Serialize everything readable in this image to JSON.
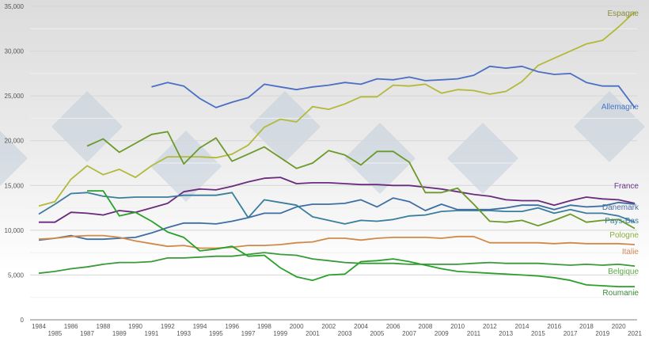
{
  "chart_data": {
    "type": "line",
    "title": "",
    "xlabel": "",
    "ylabel": "",
    "ylim": [
      0,
      35000
    ],
    "yticks": [
      "0",
      "5,000",
      "10,000",
      "15,000",
      "20,000",
      "25,000",
      "30,000",
      "35,000"
    ],
    "ytick_values": [
      0,
      5000,
      10000,
      15000,
      20000,
      25000,
      30000,
      35000
    ],
    "grid": true,
    "legend": "inline labels at line ends (right)",
    "x": [
      1984,
      1985,
      1986,
      1987,
      1988,
      1989,
      1990,
      1991,
      1992,
      1993,
      1994,
      1995,
      1996,
      1997,
      1998,
      1999,
      2000,
      2001,
      2002,
      2003,
      2004,
      2005,
      2006,
      2007,
      2008,
      2009,
      2010,
      2011,
      2012,
      2013,
      2014,
      2015,
      2016,
      2017,
      2018,
      2019,
      2020,
      2021
    ],
    "series": [
      {
        "name": "Espagne",
        "color": "#b3b93a",
        "label_color": "#8a8a3a",
        "values": [
          12700,
          13200,
          15700,
          17200,
          16200,
          16800,
          15900,
          17200,
          18200,
          18200,
          18200,
          18100,
          18500,
          19500,
          21500,
          22400,
          22100,
          23800,
          23500,
          24100,
          24900,
          24900,
          26200,
          26100,
          26300,
          25300,
          25700,
          25600,
          25200,
          25500,
          26600,
          28400,
          29200,
          30000,
          30800,
          31200,
          32700,
          34400
        ]
      },
      {
        "name": "Allemagne",
        "color": "#4a6fc4",
        "label_color": "#4a78c4",
        "values": [
          null,
          null,
          null,
          null,
          null,
          null,
          null,
          26000,
          26500,
          26100,
          24700,
          23700,
          24300,
          24800,
          26300,
          26000,
          25700,
          26000,
          26200,
          26500,
          26300,
          26900,
          26800,
          27100,
          26700,
          26800,
          26900,
          27300,
          28300,
          28100,
          28300,
          27700,
          27400,
          27500,
          26500,
          26100,
          26100,
          23700
        ]
      },
      {
        "name": "France",
        "color": "#6b2a7d",
        "label_color": "#6b3a8d",
        "values": [
          10900,
          10900,
          12000,
          11900,
          11700,
          12200,
          12000,
          12500,
          13000,
          14300,
          14600,
          14500,
          14900,
          15400,
          15800,
          15900,
          15200,
          15300,
          15300,
          15200,
          15100,
          15100,
          15000,
          15000,
          14800,
          14600,
          14300,
          14000,
          13800,
          13400,
          13300,
          13300,
          12800,
          13300,
          13700,
          13500,
          13400,
          13000
        ]
      },
      {
        "name": "Danemark",
        "color": "#3d6ea3",
        "label_color": "#4a6fa8",
        "values": [
          8900,
          9100,
          9400,
          9000,
          9000,
          9100,
          9200,
          9700,
          10300,
          10800,
          10800,
          10700,
          11000,
          11400,
          11900,
          11900,
          12600,
          12900,
          12900,
          13000,
          13400,
          12600,
          13600,
          13200,
          12200,
          12900,
          12300,
          12300,
          12300,
          12500,
          12800,
          12800,
          12300,
          12800,
          12600,
          12700,
          13100,
          12900
        ]
      },
      {
        "name": "Pays-Bas",
        "color": "#3a7d9c",
        "label_color": "#3a7d9c",
        "values": [
          11800,
          12900,
          14100,
          14200,
          13800,
          13600,
          13700,
          13700,
          13700,
          13900,
          13900,
          13900,
          14200,
          11400,
          13400,
          13100,
          12800,
          11500,
          11100,
          10700,
          11100,
          11000,
          11200,
          11600,
          11700,
          12100,
          12200,
          12200,
          12200,
          12100,
          12100,
          12500,
          11900,
          12300,
          11900,
          11900,
          11600,
          10900
        ]
      },
      {
        "name": "Pologne",
        "color": "#6b9a2a",
        "label_color": "#8ab03a",
        "values": [
          null,
          null,
          null,
          19400,
          20200,
          18700,
          19700,
          20700,
          21000,
          17400,
          19200,
          20300,
          17700,
          18500,
          19300,
          18100,
          16900,
          17500,
          18900,
          18400,
          17300,
          18800,
          18800,
          17600,
          14200,
          14200,
          14700,
          12900,
          11000,
          10900,
          11100,
          10500,
          11100,
          11800,
          10900,
          11100,
          11200,
          10200
        ]
      },
      {
        "name": "Italie",
        "color": "#d08a48",
        "label_color": "#d08a58",
        "values": [
          9000,
          9100,
          9300,
          9400,
          9400,
          9200,
          8800,
          8500,
          8200,
          8300,
          8000,
          8000,
          8100,
          8300,
          8300,
          8400,
          8600,
          8700,
          9100,
          9100,
          8900,
          9100,
          9200,
          9200,
          9200,
          9100,
          9300,
          9300,
          8600,
          8600,
          8600,
          8600,
          8500,
          8600,
          8500,
          8500,
          8500,
          8400
        ]
      },
      {
        "name": "Belgique",
        "color": "#3a9a3a",
        "label_color": "#5aaa4a",
        "values": [
          5200,
          5400,
          5700,
          5900,
          6200,
          6400,
          6400,
          6500,
          6900,
          6900,
          7000,
          7100,
          7100,
          7300,
          7500,
          7300,
          7200,
          6800,
          6600,
          6400,
          6300,
          6300,
          6300,
          6200,
          6200,
          6200,
          6200,
          6300,
          6400,
          6300,
          6300,
          6300,
          6200,
          6100,
          6200,
          6100,
          6200,
          6000
        ]
      },
      {
        "name": "Roumanie",
        "color": "#2aa02a",
        "label_color": "#3a8a3a",
        "values": [
          null,
          null,
          null,
          14400,
          14400,
          11600,
          12000,
          11000,
          9800,
          9200,
          7700,
          7900,
          8200,
          7100,
          7200,
          5800,
          4800,
          4400,
          5000,
          5100,
          6500,
          6600,
          6800,
          6500,
          6100,
          5700,
          5400,
          5300,
          5200,
          5100,
          5000,
          4900,
          4700,
          4400,
          3900,
          3800,
          3700,
          3700
        ]
      }
    ]
  }
}
